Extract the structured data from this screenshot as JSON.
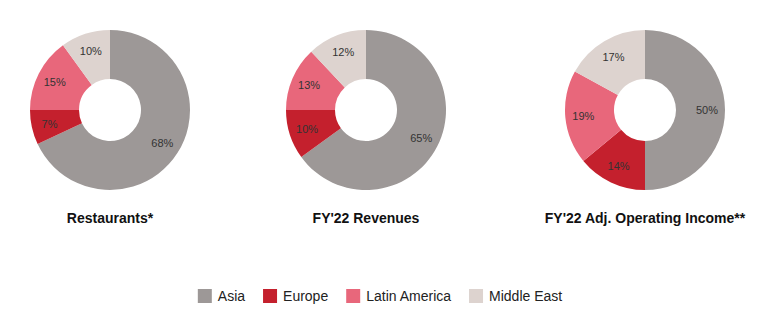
{
  "chart_data": [
    {
      "type": "pie",
      "title": "Restaurants*",
      "categories": [
        "Asia",
        "Europe",
        "Latin America",
        "Middle East"
      ],
      "values": [
        68,
        7,
        15,
        10
      ],
      "value_labels": [
        "68%",
        "7%",
        "15%",
        "10%"
      ],
      "colors": [
        "#9d9897",
        "#c4202d",
        "#e8677b",
        "#ddd3cf"
      ],
      "data_labels": true,
      "legend": "bottom"
    },
    {
      "type": "pie",
      "title": "FY'22 Revenues",
      "categories": [
        "Asia",
        "Europe",
        "Latin America",
        "Middle East"
      ],
      "values": [
        65,
        10,
        13,
        12
      ],
      "value_labels": [
        "65%",
        "10%",
        "13%",
        "12%"
      ],
      "colors": [
        "#9d9897",
        "#c4202d",
        "#e8677b",
        "#ddd3cf"
      ],
      "data_labels": true
    },
    {
      "type": "pie",
      "title": "FY'22 Adj. Operating Income**",
      "categories": [
        "Asia",
        "Europe",
        "Latin America",
        "Middle East"
      ],
      "values": [
        50,
        14,
        19,
        17
      ],
      "value_labels": [
        "50%",
        "14%",
        "19%",
        "17%"
      ],
      "colors": [
        "#9d9897",
        "#c4202d",
        "#e8677b",
        "#ddd3cf"
      ],
      "data_labels": true
    }
  ]
}
